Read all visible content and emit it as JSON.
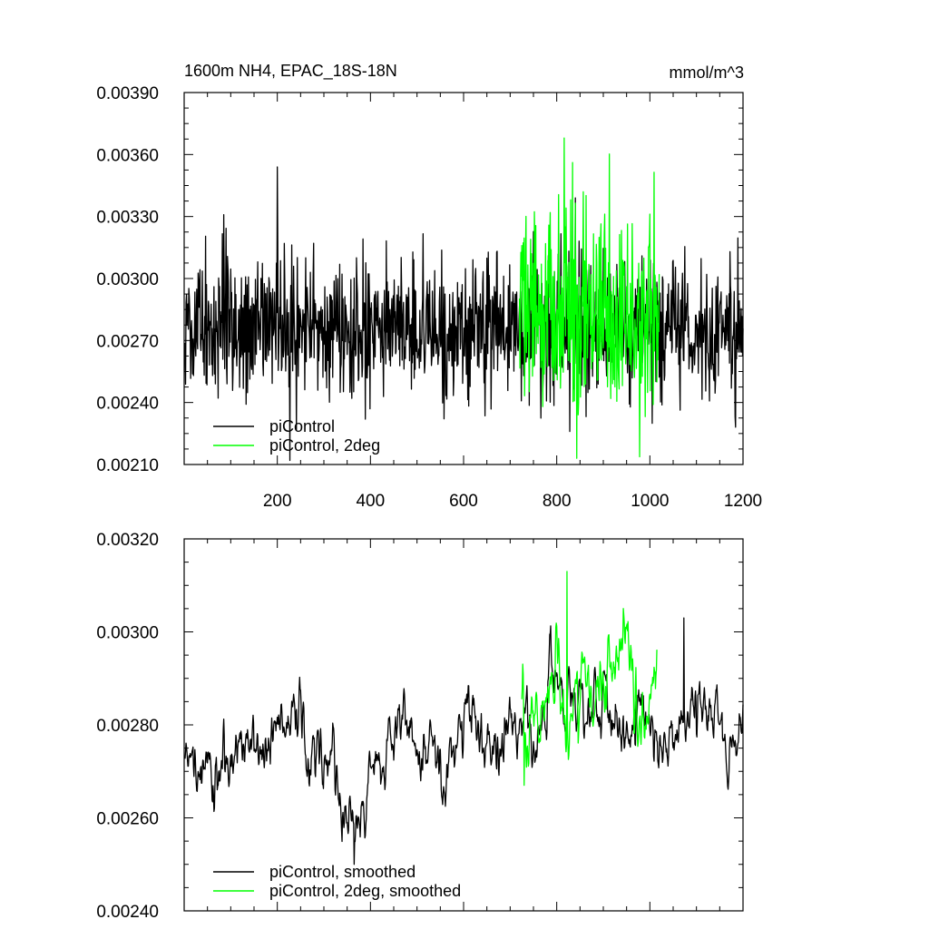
{
  "colors": {
    "black_series": "#000000",
    "green_series": "#00ff00",
    "axis": "#000000"
  },
  "chart_data": [
    {
      "type": "line",
      "title": "1600m NH4, EPAC_18S-18N",
      "units": "mmol/m^3",
      "xlim": [
        0,
        1200
      ],
      "ylim": [
        0.0021,
        0.0039
      ],
      "x_ticks": [
        200,
        400,
        600,
        800,
        1000,
        1200
      ],
      "x_tick_labels": [
        "200",
        "400",
        "600",
        "800",
        "1000",
        "1200"
      ],
      "y_ticks": [
        0.0021,
        0.0024,
        0.0027,
        0.003,
        0.0033,
        0.0036,
        0.0039
      ],
      "y_tick_labels": [
        "0.00210",
        "0.00240",
        "0.00270",
        "0.00300",
        "0.00330",
        "0.00360",
        "0.00390"
      ],
      "grid": false,
      "legend_position": "bottom-left",
      "series": [
        {
          "name": "piControl",
          "color": "#000000",
          "x_start": 1,
          "x_end": 1200,
          "mean": 0.00276,
          "std": 0.00017,
          "min": 0.00212,
          "max": 0.00354,
          "peak_x": 200,
          "trough_x": 227,
          "smooth": 0
        },
        {
          "name": "piControl, 2deg",
          "color": "#00ff00",
          "x_start": 720,
          "x_end": 1020,
          "mean": 0.00284,
          "std": 0.00025,
          "min": 0.00213,
          "max": 0.00368,
          "peak_x": 816,
          "trough_x": 843,
          "smooth": 0
        }
      ]
    },
    {
      "type": "line",
      "title": "",
      "xlim": [
        0,
        1200
      ],
      "ylim": [
        0.0024,
        0.0032
      ],
      "x_ticks": [
        200,
        400,
        600,
        800,
        1000,
        1200
      ],
      "x_tick_labels": [],
      "y_ticks": [
        0.0024,
        0.0026,
        0.0028,
        0.003,
        0.0032
      ],
      "y_tick_labels": [
        "0.00240",
        "0.00260",
        "0.00280",
        "0.00300",
        "0.00320"
      ],
      "grid": false,
      "legend_position": "bottom-left",
      "series": [
        {
          "name": "piControl, smoothed",
          "color": "#000000",
          "x_start": 1,
          "x_end": 1200,
          "mean": 0.00277,
          "std": 7e-05,
          "min": 0.0025,
          "max": 0.00303,
          "peak_x": 1073,
          "trough_x": 365,
          "smooth": 2
        },
        {
          "name": "piControl, 2deg, smoothed",
          "color": "#00ff00",
          "x_start": 725,
          "x_end": 1015,
          "mean": 0.00287,
          "std": 7e-05,
          "min": 0.00267,
          "max": 0.00313,
          "peak_x": 822,
          "trough_x": 730,
          "smooth": 2
        }
      ]
    }
  ]
}
